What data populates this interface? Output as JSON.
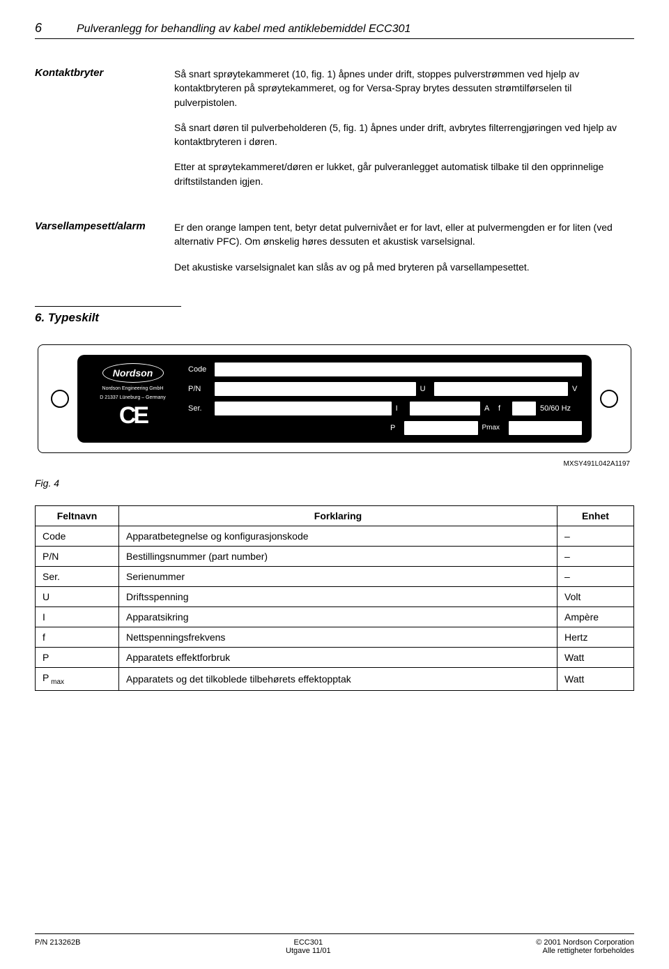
{
  "header": {
    "page_number": "6",
    "title": "Pulveranlegg for behandling av kabel med antiklebemiddel ECC301"
  },
  "sections": {
    "kontaktbryter": {
      "label": "Kontaktbryter",
      "p1": "Så snart sprøytekammeret (10, fig. 1) åpnes under drift, stoppes pulverstrømmen ved hjelp av kontaktbryteren på sprøytekammeret, og for Versa-Spray brytes dessuten strømtilførselen til pulverpistolen.",
      "p2": "Så snart døren til pulverbeholderen (5, fig. 1) åpnes under drift, avbrytes filterrengjøringen ved hjelp av kontaktbryteren i døren.",
      "p3": "Etter at sprøytekammeret/døren er lukket, går pulveranlegget automatisk tilbake til den opprinnelige driftstilstanden igjen."
    },
    "varsellampe": {
      "label": "Varsellampesett/alarm",
      "p1": "Er den orange lampen tent, betyr detat pulvernivået er for lavt, eller at pulvermengden er for liten (ved alternativ PFC). Om ønskelig høres dessuten et akustisk varselsignal.",
      "p2": "Det akustiske varselsignalet kan slås av og på med bryteren på varsellampesettet."
    }
  },
  "typeskilt": {
    "heading": "6. Typeskilt",
    "brand": "Nordson",
    "brand_sub1": "Nordson Engineering GmbH",
    "brand_sub2": "D 21337 Lüneburg – Germany",
    "ce": "CE",
    "labels": {
      "code": "Code",
      "pn": "P/N",
      "ser": "Ser.",
      "u": "U",
      "v": "V",
      "i": "I",
      "a": "A",
      "f": "f",
      "hz": "50/60 Hz",
      "p": "P",
      "pmax": "Pmax"
    },
    "fig_code": "MXSY491L042A1197",
    "fig_label": "Fig. 4"
  },
  "table": {
    "columns": [
      "Feltnavn",
      "Forklaring",
      "Enhet"
    ],
    "rows": [
      [
        "Code",
        "Apparatbetegnelse og konfigurasjonskode",
        "–"
      ],
      [
        "P/N",
        "Bestillingsnummer (part number)",
        "–"
      ],
      [
        "Ser.",
        "Serienummer",
        "–"
      ],
      [
        "U",
        "Driftsspenning",
        "Volt"
      ],
      [
        "I",
        "Apparatsikring",
        "Ampère"
      ],
      [
        "f",
        "Nettspenningsfrekvens",
        "Hertz"
      ],
      [
        "P",
        "Apparatets effektforbruk",
        "Watt"
      ],
      [
        "P max",
        "Apparatets og det tilkoblede tilbehørets effektopptak",
        "Watt"
      ]
    ]
  },
  "footer": {
    "left": "P/N 213262B",
    "center1": "ECC301",
    "center2": "Utgave 11/01",
    "right1": "© 2001 Nordson Corporation",
    "right2": "Alle rettigheter forbeholdes"
  },
  "colors": {
    "text": "#000000",
    "bg": "#ffffff",
    "plate_bg": "#000000",
    "plate_fg": "#ffffff"
  }
}
